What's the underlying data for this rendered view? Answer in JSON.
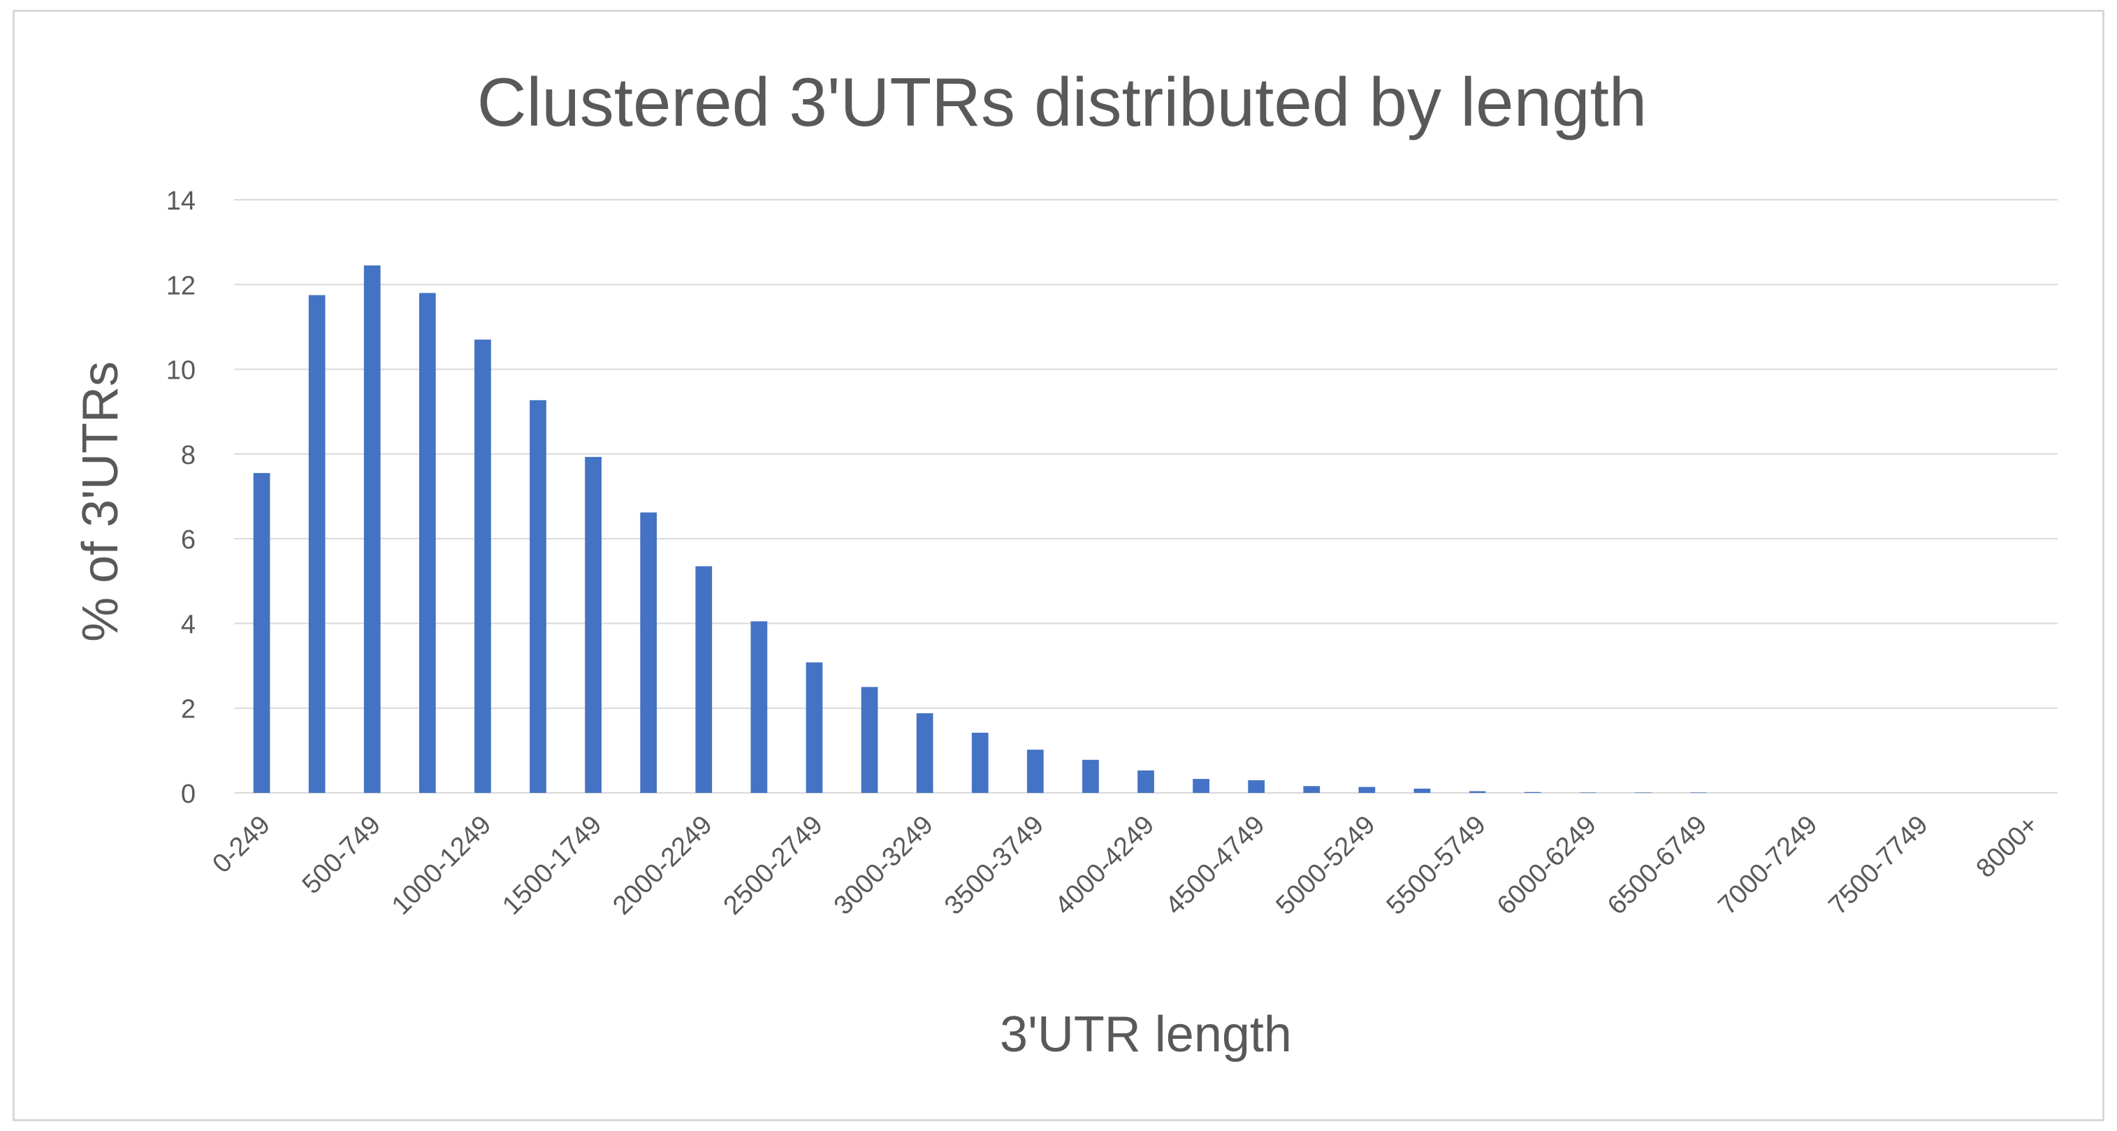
{
  "chart_data": {
    "type": "bar",
    "title": "Clustered 3'UTRs distributed by length",
    "xlabel": "3'UTR length",
    "ylabel": "% of 3'UTRs",
    "ylim": [
      0,
      14
    ],
    "yticks": [
      0,
      2,
      4,
      6,
      8,
      10,
      12,
      14
    ],
    "grid": true,
    "bar_color": "#4472C4",
    "categories": [
      "0-249",
      "250-499",
      "500-749",
      "750-999",
      "1000-1249",
      "1250-1499",
      "1500-1749",
      "1750-1999",
      "2000-2249",
      "2250-2499",
      "2500-2749",
      "2750-2999",
      "3000-3249",
      "3250-3499",
      "3500-3749",
      "3750-3999",
      "4000-4249",
      "4250-4499",
      "4500-4749",
      "4750-4999",
      "5000-5249",
      "5250-5499",
      "5500-5749",
      "5750-5999",
      "6000-6249",
      "6250-6499",
      "6500-6749",
      "6750-6999",
      "7000-7249",
      "7250-7499",
      "7500-7749",
      "7750-7999",
      "8000+"
    ],
    "values": [
      7.55,
      11.75,
      12.45,
      11.8,
      10.7,
      9.27,
      7.93,
      6.62,
      5.35,
      4.05,
      3.08,
      2.5,
      1.88,
      1.42,
      1.02,
      0.78,
      0.53,
      0.33,
      0.3,
      0.16,
      0.14,
      0.1,
      0.04,
      0.02,
      0.01,
      0.01,
      0.01,
      0.0,
      0.0,
      0.0,
      0.0,
      0.0,
      0.0
    ],
    "visible_tick_labels": [
      "0-249",
      "500-749",
      "1000-1249",
      "1500-1749",
      "2000-2249",
      "2500-2749",
      "3000-3249",
      "3500-3749",
      "4000-4249",
      "4500-4749",
      "5000-5249",
      "5500-5749",
      "6000-6249",
      "6500-6749",
      "7000-7249",
      "7500-7749",
      "8000+"
    ]
  }
}
